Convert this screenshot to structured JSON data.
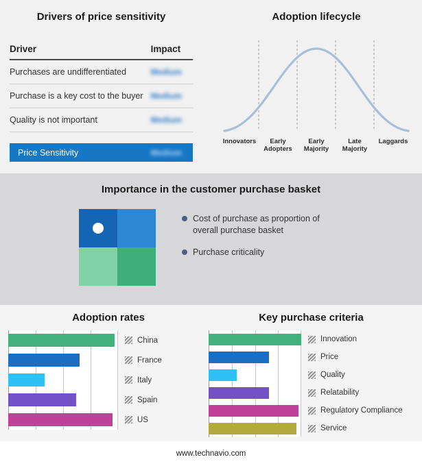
{
  "drivers": {
    "title": "Drivers of price sensitivity",
    "columns": {
      "driver": "Driver",
      "impact": "Impact"
    },
    "rows": [
      {
        "driver": "Purchases are undifferentiated",
        "impact": "Medium"
      },
      {
        "driver": "Purchase is a key cost to the buyer",
        "impact": "Medium"
      },
      {
        "driver": "Quality is not important",
        "impact": "Medium"
      }
    ],
    "highlight_row": {
      "driver": "Price Sensitivity",
      "impact": "Medium"
    },
    "highlight_color": "#1677c4"
  },
  "lifecycle": {
    "title": "Adoption lifecycle",
    "stages": [
      "Innovators",
      "Early Adopters",
      "Early Majority",
      "Late Majority",
      "Laggards"
    ],
    "curve_color": "#a9bed9"
  },
  "basket": {
    "title": "Importance in the customer purchase basket",
    "bullets": [
      "Cost of purchase as proportion of overall purchase basket",
      "Purchase criticality"
    ],
    "quadrant_colors": [
      "#1565b4",
      "#2f87d2",
      "#82d2a8",
      "#3fae7a"
    ]
  },
  "chart_data": [
    {
      "type": "bar",
      "title": "Adoption rates",
      "orientation": "horizontal",
      "categories": [
        "China",
        "France",
        "Italy",
        "Spain",
        "US"
      ],
      "values": [
        97,
        65,
        33,
        62,
        95
      ],
      "colors": [
        "#44b07e",
        "#1a6fc4",
        "#2fc1f5",
        "#7451c8",
        "#c0409a"
      ],
      "xlim": [
        0,
        100
      ],
      "xlabel": "",
      "ylabel": "",
      "grid": true,
      "note": "values estimated from bar lengths; no numeric axis labels shown"
    },
    {
      "type": "bar",
      "title": "Key purchase criteria",
      "orientation": "horizontal",
      "categories": [
        "Innovation",
        "Price",
        "Quality",
        "Relatability",
        "Regulatory Compliance",
        "Service"
      ],
      "values": [
        100,
        65,
        30,
        65,
        97,
        95
      ],
      "colors": [
        "#44b07e",
        "#1a6fc4",
        "#2fc1f5",
        "#7451c8",
        "#c0409a",
        "#b3a93c"
      ],
      "xlim": [
        0,
        100
      ],
      "xlabel": "",
      "ylabel": "",
      "grid": true,
      "note": "values estimated from bar lengths; no numeric axis labels shown"
    },
    {
      "type": "line",
      "title": "Adoption lifecycle",
      "shape": "bell curve",
      "categories": [
        "Innovators",
        "Early Adopters",
        "Early Majority",
        "Late Majority",
        "Laggards"
      ],
      "note": "classic adoption lifecycle bell curve divided into five equal segments by dashed lines"
    }
  ],
  "footer": {
    "website": "www.technavio.com"
  }
}
